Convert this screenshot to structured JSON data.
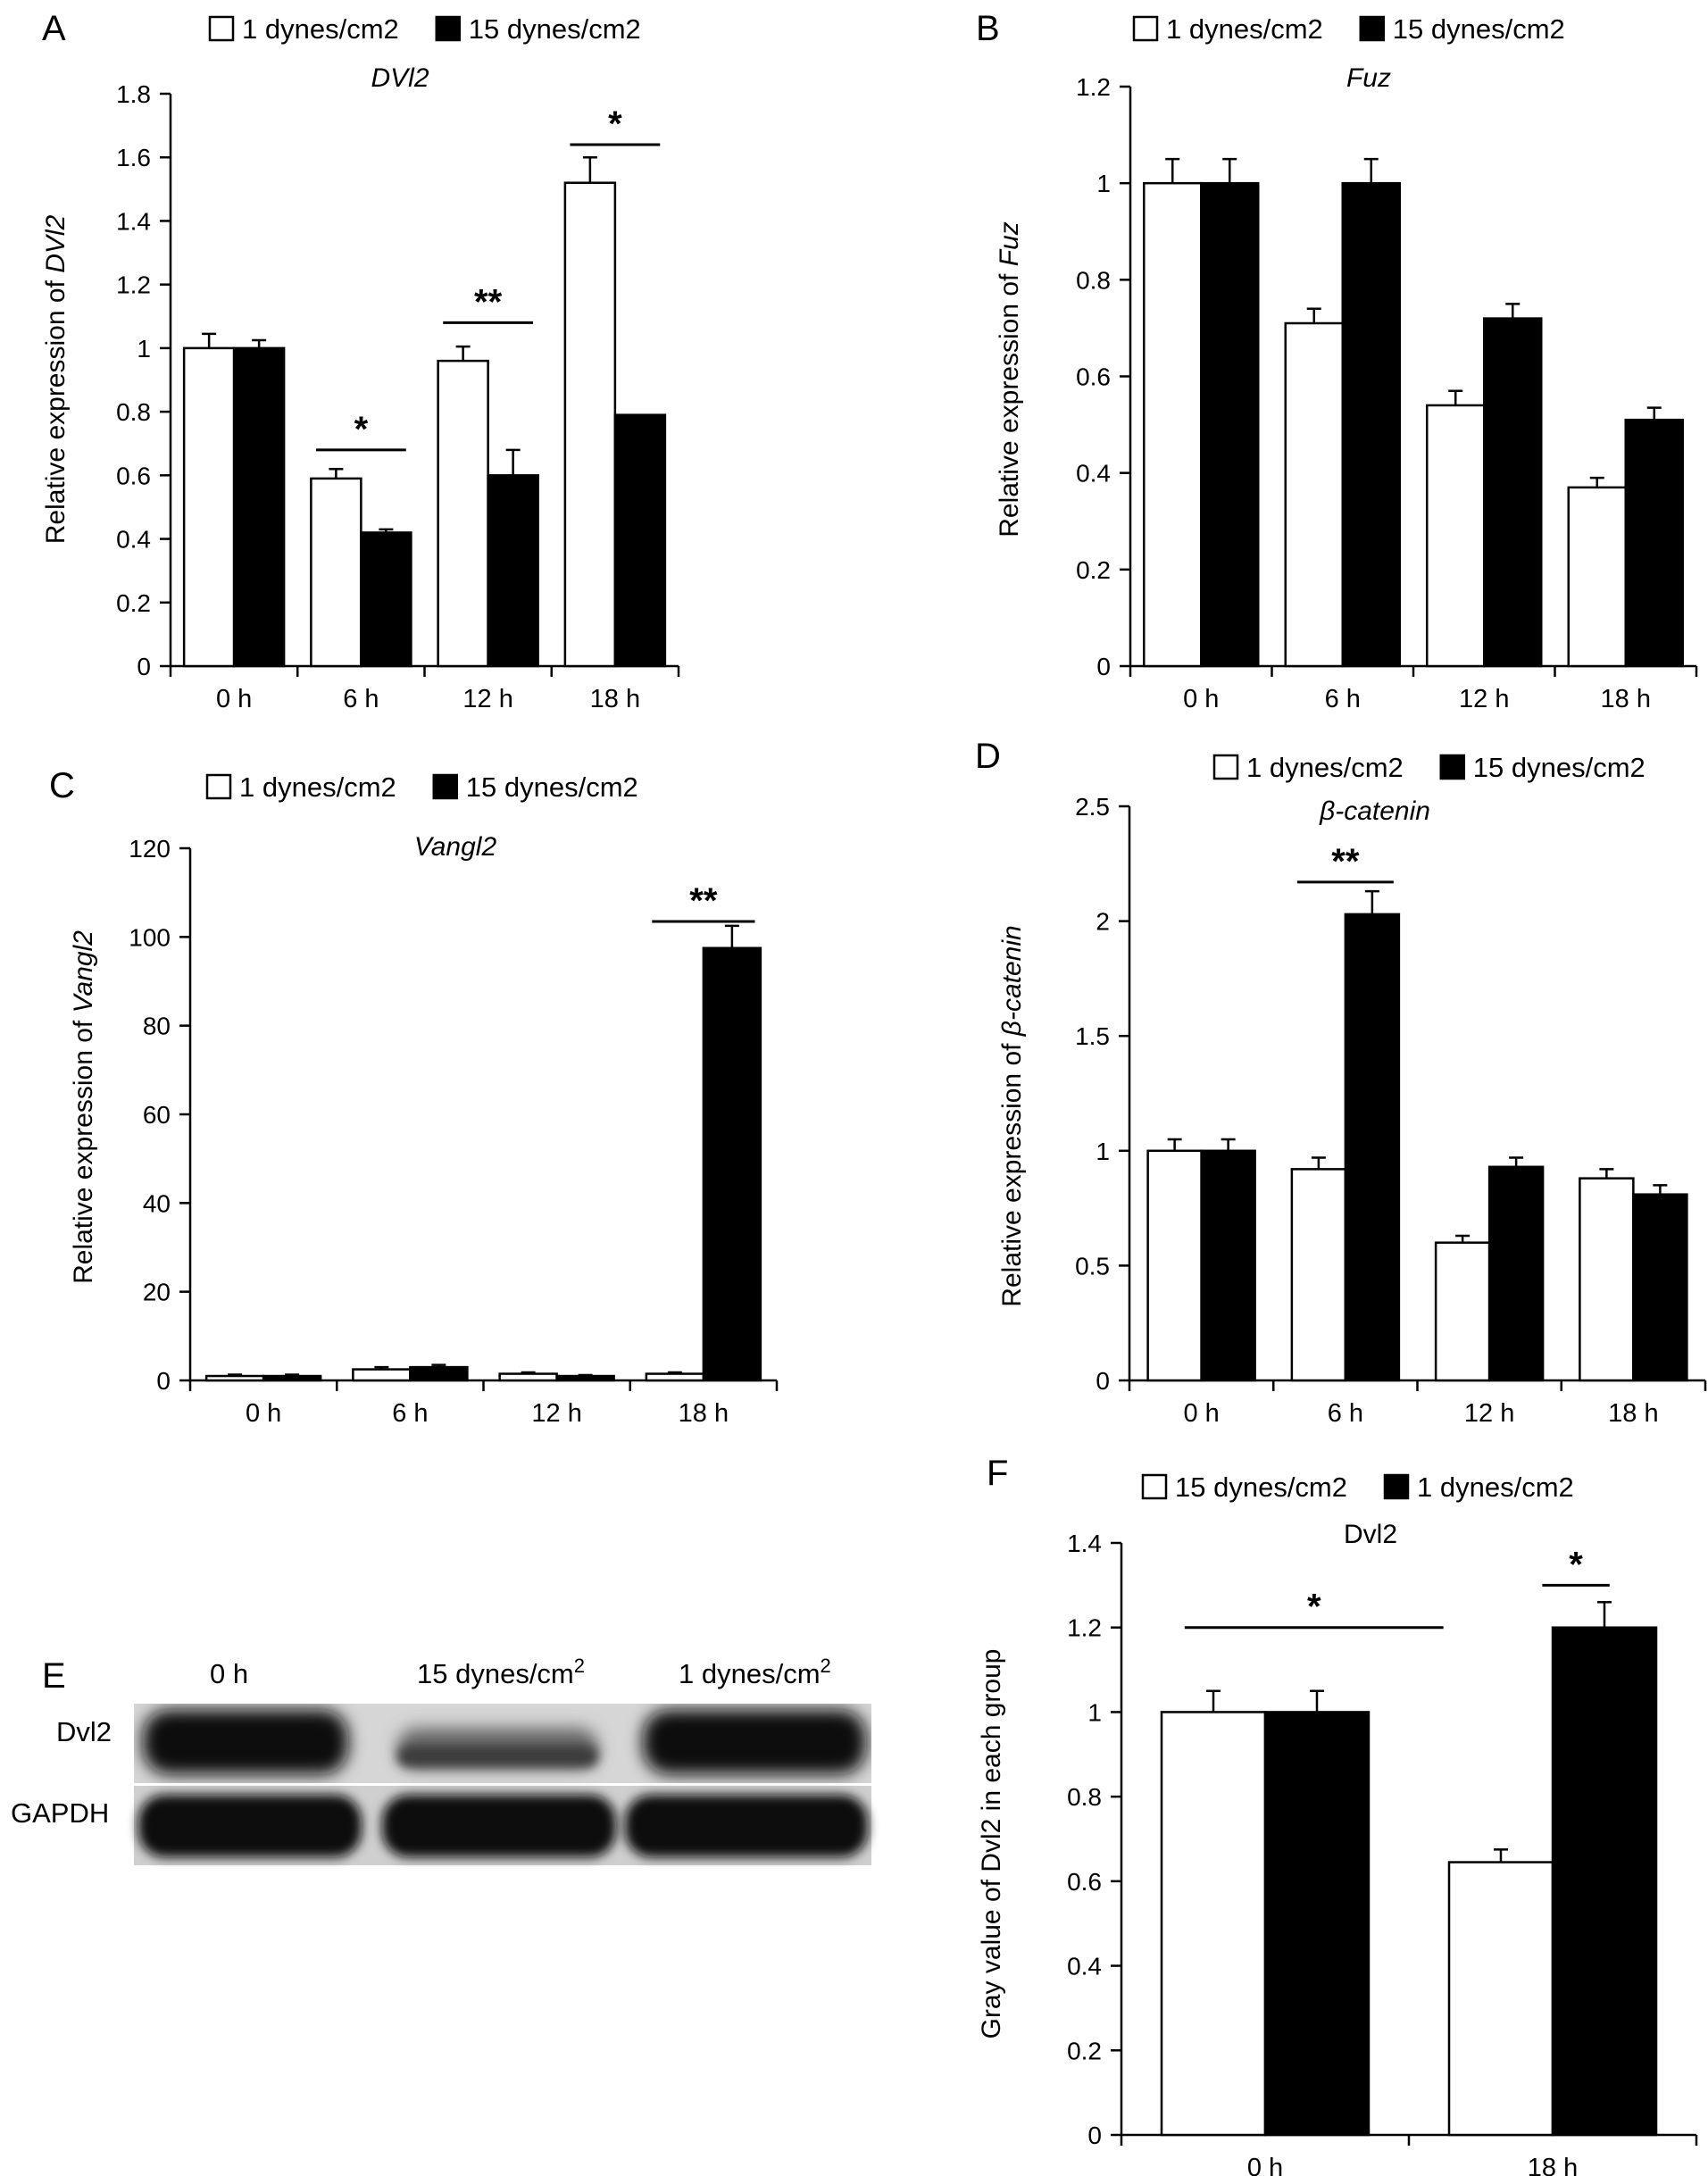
{
  "chart_data": [
    {
      "type": "bar",
      "panel": "A",
      "title": "DVl2",
      "title_italic": true,
      "ylabel": "Relative expression of ",
      "ylabel_italic_part": "DVl2",
      "ylim": [
        0,
        1.8
      ],
      "yticks": [
        0,
        0.2,
        0.4,
        0.6,
        0.8,
        1,
        1.2,
        1.4,
        1.6,
        1.8
      ],
      "categories": [
        "0 h",
        "6 h",
        "12 h",
        "18 h"
      ],
      "series": [
        {
          "name": "1 dynes/cm2",
          "fill": "white",
          "values": [
            1.0,
            0.59,
            0.96,
            1.52
          ],
          "errors": [
            0.045,
            0.03,
            0.045,
            0.08
          ]
        },
        {
          "name": "15 dynes/cm2",
          "fill": "black",
          "values": [
            1.0,
            0.42,
            0.6,
            0.79
          ],
          "errors": [
            0.025,
            0.01,
            0.08,
            0.0
          ]
        }
      ],
      "significance": [
        {
          "category": 1,
          "label": "*",
          "at": 0.68
        },
        {
          "category": 2,
          "label": "**",
          "at": 1.08
        },
        {
          "category": 3,
          "label": "*",
          "at": 1.64
        }
      ],
      "legend": "top"
    },
    {
      "type": "bar",
      "panel": "B",
      "title": "Fuz",
      "title_italic": true,
      "ylabel": "Relative expression of ",
      "ylabel_italic_part": "Fuz",
      "ylim": [
        0,
        1.2
      ],
      "yticks": [
        0,
        0.2,
        0.4,
        0.6,
        0.8,
        1,
        1.2
      ],
      "categories": [
        "0 h",
        "6 h",
        "12 h",
        "18 h"
      ],
      "series": [
        {
          "name": "1 dynes/cm2",
          "fill": "white",
          "values": [
            1.0,
            0.71,
            0.54,
            0.37
          ],
          "errors": [
            0.05,
            0.03,
            0.03,
            0.02
          ]
        },
        {
          "name": "15 dynes/cm2",
          "fill": "black",
          "values": [
            1.0,
            1.0,
            0.72,
            0.51
          ],
          "errors": [
            0.05,
            0.05,
            0.03,
            0.025
          ]
        }
      ],
      "significance": [],
      "legend": "top"
    },
    {
      "type": "bar",
      "panel": "C",
      "title": "Vangl2",
      "title_italic": true,
      "ylabel": "Relative expression of ",
      "ylabel_italic_part": "Vangl2",
      "ylim": [
        0,
        120
      ],
      "yticks": [
        0,
        20,
        40,
        60,
        80,
        100,
        120
      ],
      "categories": [
        "0 h",
        "6 h",
        "12 h",
        "18 h"
      ],
      "series": [
        {
          "name": "1 dynes/cm2",
          "fill": "white",
          "values": [
            1.0,
            2.5,
            1.5,
            1.5
          ],
          "errors": [
            0.3,
            0.5,
            0.3,
            0.3
          ]
        },
        {
          "name": "15 dynes/cm2",
          "fill": "black",
          "values": [
            1.0,
            3.0,
            1.0,
            97.5
          ],
          "errors": [
            0.3,
            0.5,
            0.2,
            5.0
          ]
        }
      ],
      "significance": [
        {
          "category": 3,
          "label": "**",
          "at": 103.5
        }
      ],
      "legend": "top"
    },
    {
      "type": "bar",
      "panel": "D",
      "title": "β-catenin",
      "title_italic": true,
      "ylabel": "Relative expression of ",
      "ylabel_italic_part": "β-catenin",
      "ylim": [
        0,
        2.5
      ],
      "yticks": [
        0,
        0.5,
        1,
        1.5,
        2,
        2.5
      ],
      "categories": [
        "0 h",
        "6 h",
        "12 h",
        "18 h"
      ],
      "series": [
        {
          "name": "1 dynes/cm2",
          "fill": "white",
          "values": [
            1.0,
            0.92,
            0.6,
            0.88
          ],
          "errors": [
            0.05,
            0.05,
            0.03,
            0.04
          ]
        },
        {
          "name": "15 dynes/cm2",
          "fill": "black",
          "values": [
            1.0,
            2.03,
            0.93,
            0.81
          ],
          "errors": [
            0.05,
            0.1,
            0.04,
            0.04
          ]
        }
      ],
      "significance": [
        {
          "category": 1,
          "label": "**",
          "at": 2.17
        }
      ],
      "legend": "top"
    },
    {
      "type": "bar",
      "panel": "F",
      "title": "Dvl2",
      "title_italic": false,
      "ylabel": "Gray value of Dvl2 in each group",
      "ylabel_italic_part": "",
      "ylim": [
        0,
        1.4
      ],
      "yticks": [
        0,
        0.2,
        0.4,
        0.6,
        0.8,
        1,
        1.2,
        1.4
      ],
      "categories": [
        "0 h",
        "18 h"
      ],
      "series": [
        {
          "name": "15 dynes/cm2",
          "fill": "white",
          "values": [
            1.0,
            0.645
          ],
          "errors": [
            0.05,
            0.03
          ]
        },
        {
          "name": "1 dynes/cm2",
          "fill": "black",
          "values": [
            1.0,
            1.2
          ],
          "errors": [
            0.05,
            0.06
          ]
        }
      ],
      "significance": [
        {
          "category": 1,
          "label": "*",
          "at": 1.3
        },
        {
          "span": [
            0,
            1
          ],
          "label": "*",
          "at": 1.2
        }
      ],
      "legend": "top"
    }
  ],
  "blot": {
    "panel": "E",
    "columns": [
      "0 h",
      "15 dynes/cm",
      "1 dynes/cm"
    ],
    "column_superscript": "2",
    "rows": [
      "Dvl2",
      "GAPDH"
    ]
  }
}
